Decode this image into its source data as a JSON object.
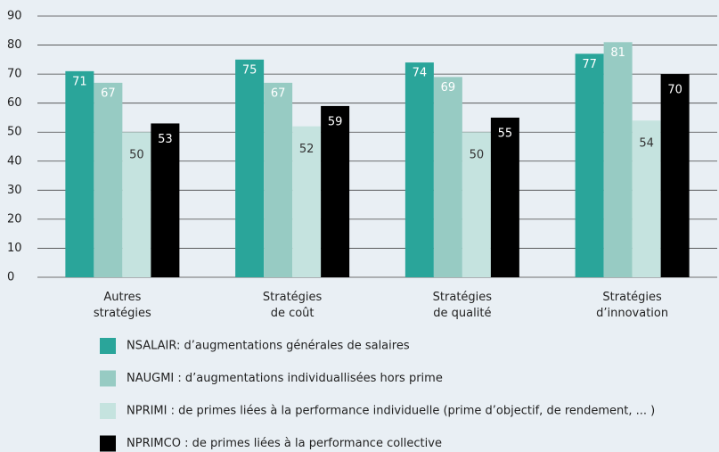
{
  "chart_data": {
    "type": "bar",
    "categories": [
      "Autres stratégies",
      "Stratégies de coût",
      "Stratégies de qualité",
      "Stratégies d’innovation"
    ],
    "series": [
      {
        "name": "NSALAIR: d’augmentations générales de salaires",
        "color": "#2aa59a",
        "values": [
          71,
          75,
          74,
          77
        ]
      },
      {
        "name": "NAUGMI : d’augmentations individuallisées hors prime",
        "color": "#97cbc3",
        "values": [
          67,
          67,
          69,
          81
        ]
      },
      {
        "name": "NPRIMI : de primes liées à la performance individuelle (prime d’objectif, de rendement, ... )",
        "color": "#c5e3df",
        "values": [
          50,
          52,
          50,
          54
        ]
      },
      {
        "name": "NPRIMCO : de primes liées à la performance collective",
        "color": "#000000",
        "values": [
          53,
          59,
          55,
          70
        ]
      }
    ],
    "ylim": [
      0,
      90
    ],
    "yticks": [
      0,
      10,
      20,
      30,
      40,
      50,
      60,
      70,
      80,
      90
    ],
    "grid": true
  }
}
